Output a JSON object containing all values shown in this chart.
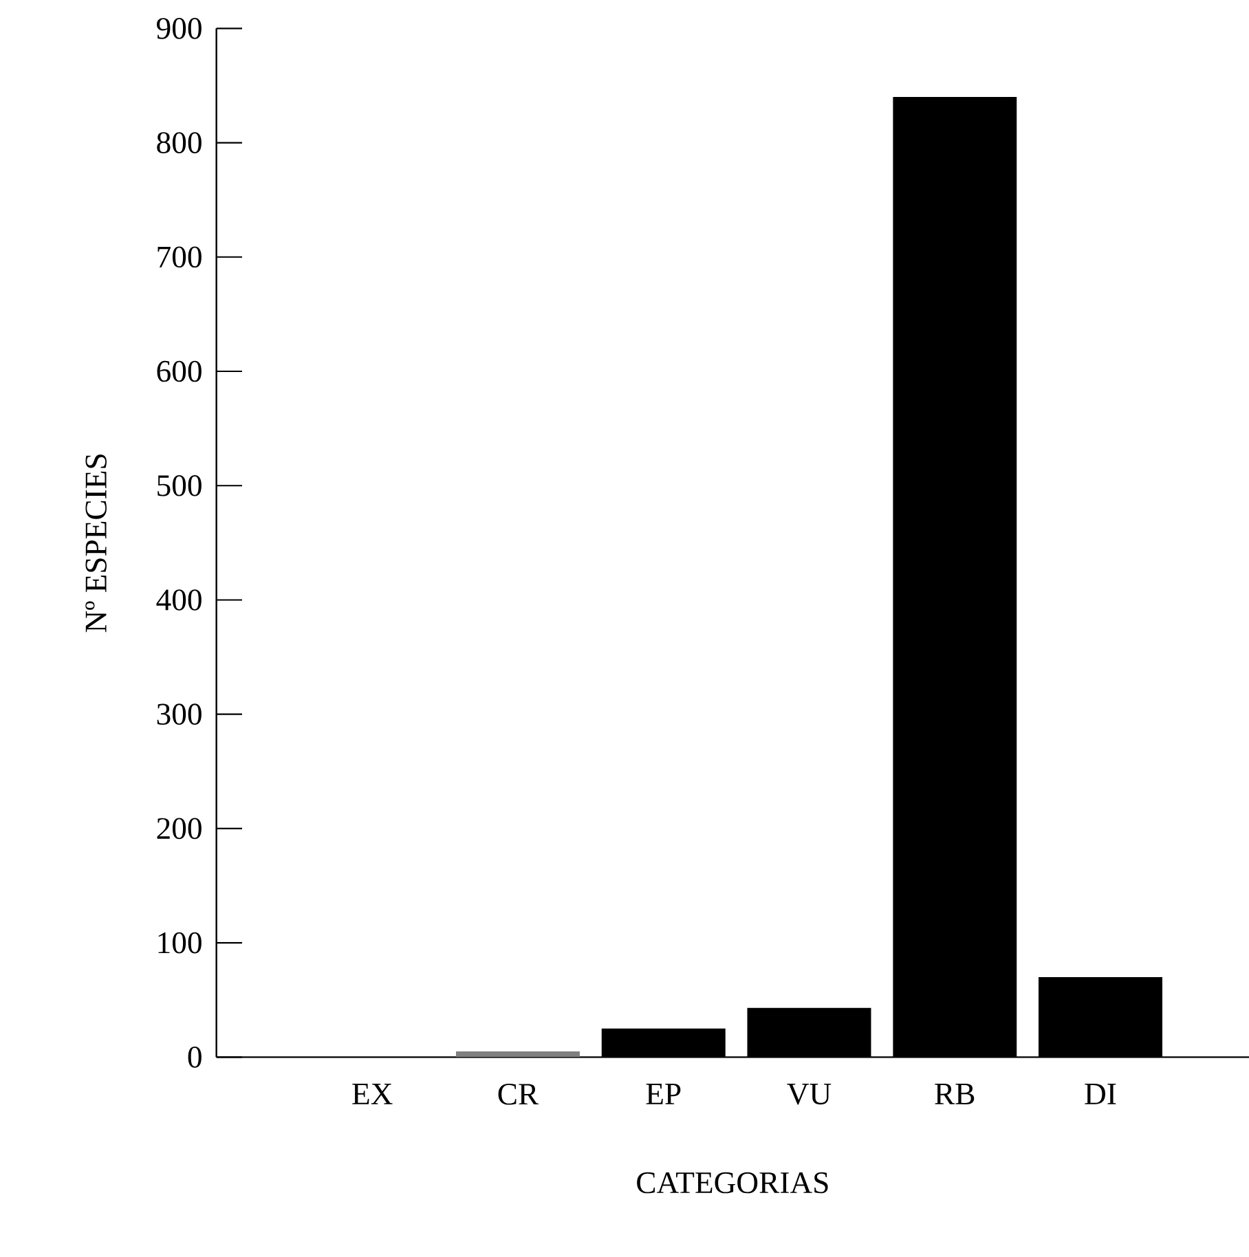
{
  "chart_data": {
    "type": "bar",
    "xlabel": "CATEGORIAS",
    "ylabel": "Nº ESPECIES",
    "categories": [
      "EX",
      "CR",
      "EP",
      "VU",
      "RB",
      "DI"
    ],
    "values": [
      null,
      5,
      25,
      43,
      840,
      70
    ],
    "colors": [
      "#000000",
      "#808080",
      "#000000",
      "#000000",
      "#000000",
      "#000000"
    ],
    "ylim": [
      0,
      900
    ],
    "yticks": [
      0,
      100,
      200,
      300,
      400,
      500,
      600,
      700,
      800,
      900
    ],
    "grid": false
  }
}
